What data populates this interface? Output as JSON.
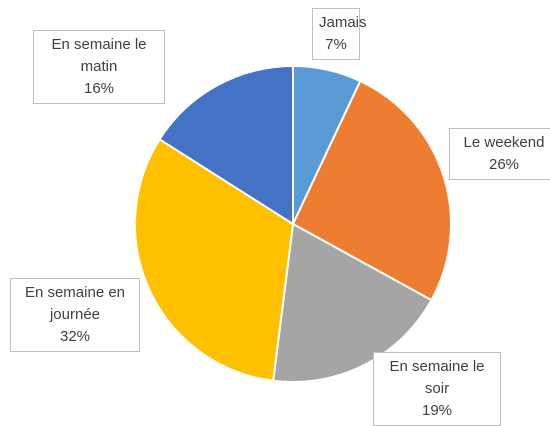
{
  "chart_data": {
    "type": "pie",
    "categories": [
      "Jamais",
      "Le weekend",
      "En semaine le soir",
      "En semaine en journée",
      "En semaine le matin"
    ],
    "values": [
      7,
      26,
      19,
      32,
      16
    ],
    "value_labels": [
      "7%",
      "26%",
      "19%",
      "32%",
      "16%"
    ],
    "colors": [
      "#5b9bd5",
      "#ed7d31",
      "#a5a5a5",
      "#ffc000",
      "#4472c4"
    ]
  }
}
